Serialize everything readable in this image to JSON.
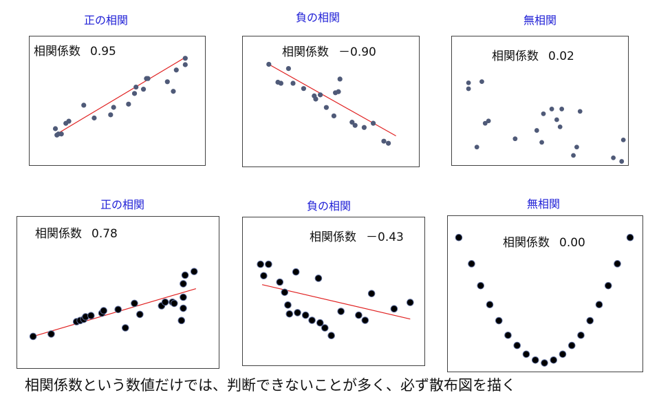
{
  "caption": "相関係数という数値だけでは、判断できないことが多く、必ず散布図を描く",
  "colors": {
    "title": "#1f1fd6",
    "trend": "#e02020",
    "dot_top": "#4f5a78",
    "dot_bottom": "#000000",
    "dot_bottom_stroke": "#5b6b9a"
  },
  "chart_data": [
    {
      "type": "scatter",
      "title": "正の相関",
      "coef_label": "相関係数",
      "coef_value": "0.95",
      "xlim": [
        0,
        10
      ],
      "ylim": [
        0,
        10
      ],
      "trend": [
        [
          1.0,
          1.5
        ],
        [
          9.5,
          8.6
        ]
      ],
      "points": [
        [
          1.0,
          1.4
        ],
        [
          1.1,
          1.5
        ],
        [
          1.3,
          1.5
        ],
        [
          0.9,
          2.0
        ],
        [
          1.6,
          2.5
        ],
        [
          1.8,
          2.7
        ],
        [
          2.8,
          4.2
        ],
        [
          3.5,
          3.0
        ],
        [
          4.6,
          3.3
        ],
        [
          4.8,
          4.0
        ],
        [
          5.8,
          4.3
        ],
        [
          6.2,
          5.3
        ],
        [
          6.3,
          5.9
        ],
        [
          6.8,
          5.7
        ],
        [
          7.0,
          6.7
        ],
        [
          7.1,
          6.7
        ],
        [
          8.4,
          6.4
        ],
        [
          8.8,
          5.5
        ],
        [
          9.0,
          7.5
        ],
        [
          9.6,
          8.0
        ],
        [
          9.6,
          8.6
        ]
      ]
    },
    {
      "type": "scatter",
      "title": "負の相関",
      "coef_label": "相関係数",
      "coef_value": "－0.90",
      "xlim": [
        0,
        10
      ],
      "ylim": [
        0,
        10
      ],
      "trend": [
        [
          0.9,
          8.4
        ],
        [
          9.3,
          1.6
        ]
      ],
      "points": [
        [
          0.9,
          8.4
        ],
        [
          1.5,
          6.7
        ],
        [
          1.7,
          6.6
        ],
        [
          2.2,
          8.0
        ],
        [
          2.5,
          6.6
        ],
        [
          3.2,
          6.1
        ],
        [
          3.9,
          5.4
        ],
        [
          4.0,
          5.1
        ],
        [
          4.3,
          5.5
        ],
        [
          4.7,
          4.3
        ],
        [
          5.2,
          3.5
        ],
        [
          5.3,
          5.7
        ],
        [
          5.5,
          5.8
        ],
        [
          5.6,
          7.0
        ],
        [
          6.4,
          2.9
        ],
        [
          6.6,
          2.6
        ],
        [
          7.2,
          2.4
        ],
        [
          7.8,
          2.8
        ],
        [
          8.5,
          1.1
        ],
        [
          8.8,
          0.9
        ]
      ]
    },
    {
      "type": "scatter",
      "title": "無相関",
      "coef_label": "相関係数",
      "coef_value": "0.02",
      "xlim": [
        0,
        10
      ],
      "ylim": [
        0,
        10
      ],
      "trend": null,
      "points": [
        [
          0.5,
          6.8
        ],
        [
          0.5,
          6.3
        ],
        [
          1.0,
          1.4
        ],
        [
          1.3,
          6.9
        ],
        [
          1.5,
          3.4
        ],
        [
          1.7,
          3.6
        ],
        [
          3.3,
          2.1
        ],
        [
          4.6,
          2.8
        ],
        [
          4.9,
          1.8
        ],
        [
          5.0,
          4.2
        ],
        [
          5.5,
          4.6
        ],
        [
          5.8,
          3.7
        ],
        [
          6.0,
          3.1
        ],
        [
          6.1,
          4.6
        ],
        [
          6.8,
          0.7
        ],
        [
          7.0,
          1.4
        ],
        [
          7.2,
          4.4
        ],
        [
          9.2,
          0.5
        ],
        [
          9.7,
          0.2
        ],
        [
          9.8,
          2.0
        ]
      ]
    },
    {
      "type": "scatter",
      "title": "正の相関",
      "coef_label": "相関係数",
      "coef_value": "0.78",
      "xlim": [
        0,
        10
      ],
      "ylim": [
        0,
        10
      ],
      "trend": [
        [
          0.5,
          1.8
        ],
        [
          9.5,
          5.7
        ]
      ],
      "points": [
        [
          0.5,
          1.8
        ],
        [
          1.5,
          2.0
        ],
        [
          2.9,
          3.0
        ],
        [
          3.1,
          3.1
        ],
        [
          3.3,
          3.2
        ],
        [
          3.4,
          3.4
        ],
        [
          3.7,
          3.5
        ],
        [
          4.3,
          3.7
        ],
        [
          4.4,
          3.9
        ],
        [
          5.2,
          4.0
        ],
        [
          5.6,
          2.5
        ],
        [
          6.1,
          4.5
        ],
        [
          6.4,
          3.6
        ],
        [
          7.6,
          4.3
        ],
        [
          7.8,
          4.6
        ],
        [
          8.2,
          4.6
        ],
        [
          8.3,
          4.5
        ],
        [
          8.7,
          3.1
        ],
        [
          8.8,
          4.1
        ],
        [
          8.8,
          5.0
        ],
        [
          8.8,
          6.1
        ],
        [
          8.9,
          6.8
        ],
        [
          9.4,
          7.1
        ]
      ]
    },
    {
      "type": "scatter",
      "title": "負の相関",
      "coef_label": "相関係数",
      "coef_value": "－0.43",
      "xlim": [
        0,
        10
      ],
      "ylim": [
        0,
        10
      ],
      "trend": [
        [
          0.6,
          5.8
        ],
        [
          9.8,
          3.1
        ]
      ],
      "points": [
        [
          0.5,
          7.4
        ],
        [
          0.7,
          6.5
        ],
        [
          1.0,
          7.4
        ],
        [
          1.7,
          6.0
        ],
        [
          2.0,
          5.2
        ],
        [
          2.2,
          4.2
        ],
        [
          2.3,
          3.5
        ],
        [
          2.7,
          6.8
        ],
        [
          2.8,
          3.6
        ],
        [
          3.3,
          3.4
        ],
        [
          3.7,
          3.0
        ],
        [
          4.1,
          6.3
        ],
        [
          4.2,
          2.8
        ],
        [
          4.5,
          2.4
        ],
        [
          4.9,
          1.8
        ],
        [
          5.5,
          3.7
        ],
        [
          6.6,
          3.4
        ],
        [
          7.0,
          3.0
        ],
        [
          7.4,
          5.1
        ],
        [
          8.8,
          3.9
        ],
        [
          9.8,
          4.4
        ]
      ]
    },
    {
      "type": "scatter",
      "title": "無相関",
      "coef_label": "相関係数",
      "coef_value": "0.00",
      "xlim": [
        0,
        10
      ],
      "ylim": [
        0,
        10
      ],
      "trend": null,
      "points": [
        [
          0.3,
          9.0
        ],
        [
          1.0,
          7.2
        ],
        [
          1.5,
          5.7
        ],
        [
          2.0,
          4.4
        ],
        [
          2.5,
          3.3
        ],
        [
          3.0,
          2.3
        ],
        [
          3.5,
          1.6
        ],
        [
          4.0,
          1.0
        ],
        [
          4.5,
          0.6
        ],
        [
          5.0,
          0.4
        ],
        [
          5.5,
          0.6
        ],
        [
          6.0,
          1.0
        ],
        [
          6.5,
          1.6
        ],
        [
          7.0,
          2.3
        ],
        [
          7.5,
          3.3
        ],
        [
          8.0,
          4.4
        ],
        [
          8.5,
          5.7
        ],
        [
          9.0,
          7.2
        ],
        [
          9.7,
          9.0
        ]
      ]
    }
  ]
}
